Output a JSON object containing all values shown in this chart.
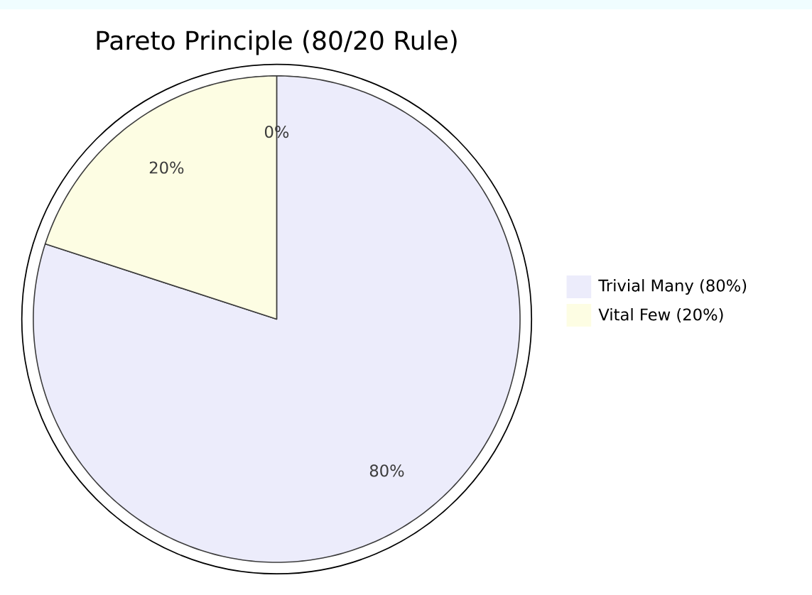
{
  "chart_data": {
    "type": "pie",
    "title": "Pareto Principle (80/20 Rule)",
    "categories": [
      "Trivial Many (80%)",
      "Vital Few (20%)",
      null
    ],
    "values": [
      80,
      20,
      0
    ],
    "colors": [
      "#ececfb",
      "#fdfde3",
      "#adff2f"
    ],
    "value_labels": [
      "80%",
      "20%",
      "0%"
    ],
    "legend": "right"
  }
}
